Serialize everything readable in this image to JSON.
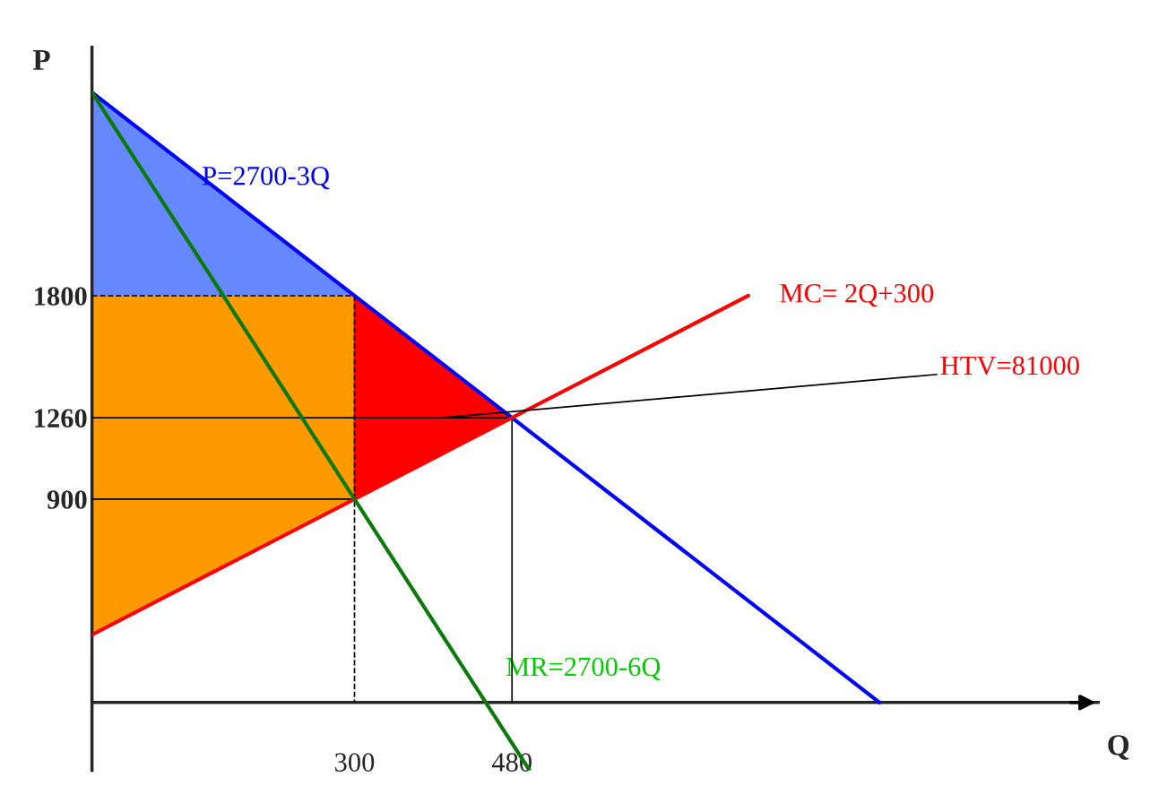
{
  "chart_data": {
    "type": "line",
    "xlabel": "Q",
    "ylabel": "P",
    "xlim": [
      0,
      1150
    ],
    "ylim": [
      -300,
      2900
    ],
    "xticks": [
      300,
      480
    ],
    "yticks": [
      900,
      1260,
      1800
    ],
    "series": [
      {
        "color": "#000000",
        "line_style": "dashed",
        "x": [
          0,
          300
        ],
        "values": [
          1800,
          1800
        ]
      },
      {
        "color": "#000000",
        "line_style": "dashed",
        "x": [
          300,
          300
        ],
        "values": [
          1800,
          0
        ]
      },
      {
        "color": "#000000",
        "line_style": "solid",
        "x": [
          0,
          480
        ],
        "values": [
          1260,
          1260
        ]
      },
      {
        "color": "#000000",
        "line_style": "solid",
        "x": [
          0,
          300
        ],
        "values": [
          900,
          900
        ]
      },
      {
        "color": "#000000",
        "line_style": "solid",
        "x": [
          480,
          480
        ],
        "values": [
          1260,
          0
        ]
      },
      {
        "name": "P=2700-3Q",
        "color": "#0000ff",
        "line_style": "solid",
        "x": [
          0,
          900
        ],
        "values": [
          2700,
          0
        ]
      },
      {
        "name": "MC= 2Q+300",
        "color": "#ff0000",
        "line_style": "solid",
        "x": [
          0,
          750
        ],
        "values": [
          300,
          1800
        ]
      },
      {
        "name": "MR=2700-6Q",
        "color": "#0a7a0a",
        "line_style": "solid",
        "x": [
          0,
          500
        ],
        "values": [
          2700,
          -300
        ]
      }
    ],
    "annotations": [
      {
        "text": "HTV=81000",
        "x": 400,
        "y": 1260
      }
    ]
  }
}
